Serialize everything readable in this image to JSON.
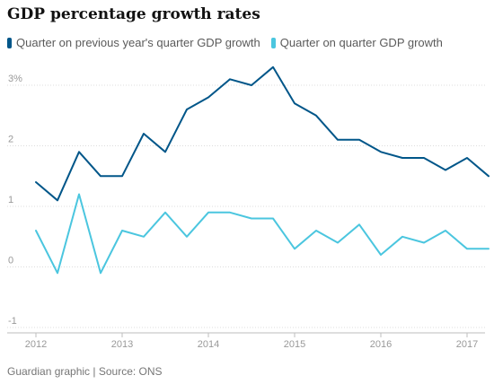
{
  "title": "GDP percentage growth rates",
  "footer": "Guardian graphic | Source: ONS",
  "colors": {
    "series1": "#005689",
    "series2": "#4bc6df",
    "grid": "#dcdcdc",
    "axis": "#bdbdbd",
    "tick": "#999999"
  },
  "chart_data": {
    "type": "line",
    "title": "GDP percentage growth rates",
    "xlabel": "",
    "ylabel": "",
    "ylim": [
      -1,
      3.5
    ],
    "xlim": [
      2012.0,
      2017.15
    ],
    "y_ticks": [
      {
        "value": 3,
        "label": "3%"
      },
      {
        "value": 2,
        "label": "2"
      },
      {
        "value": 1,
        "label": "1"
      },
      {
        "value": 0,
        "label": "0"
      },
      {
        "value": -1,
        "label": "-1"
      }
    ],
    "x_ticks": [
      {
        "value": 2012,
        "label": "2012"
      },
      {
        "value": 2013,
        "label": "2013"
      },
      {
        "value": 2014,
        "label": "2014"
      },
      {
        "value": 2015,
        "label": "2015"
      },
      {
        "value": 2016,
        "label": "2016"
      },
      {
        "value": 2017,
        "label": "2017"
      }
    ],
    "x": [
      "2012 Q1",
      "2012 Q2",
      "2012 Q3",
      "2012 Q4",
      "2013 Q1",
      "2013 Q2",
      "2013 Q3",
      "2013 Q4",
      "2014 Q1",
      "2014 Q2",
      "2014 Q3",
      "2014 Q4",
      "2015 Q1",
      "2015 Q2",
      "2015 Q3",
      "2015 Q4",
      "2016 Q1",
      "2016 Q2",
      "2016 Q3",
      "2016 Q4",
      "2017 Q1",
      "2017 Q2"
    ],
    "legend_position": "top-left",
    "grid": "horizontal-dotted",
    "series": [
      {
        "name": "Quarter on previous year's quarter GDP growth",
        "color": "#005689",
        "values": [
          1.4,
          1.1,
          1.9,
          1.5,
          1.5,
          2.2,
          1.9,
          2.6,
          2.8,
          3.1,
          3.0,
          3.3,
          2.7,
          2.5,
          2.1,
          2.1,
          1.9,
          1.8,
          1.8,
          1.6,
          1.8,
          1.5
        ]
      },
      {
        "name": "Quarter on quarter GDP growth",
        "color": "#4bc6df",
        "values": [
          0.6,
          -0.1,
          1.2,
          -0.1,
          0.6,
          0.5,
          0.9,
          0.5,
          0.9,
          0.9,
          0.8,
          0.8,
          0.3,
          0.6,
          0.4,
          0.7,
          0.2,
          0.5,
          0.4,
          0.6,
          0.3,
          0.3
        ]
      }
    ]
  }
}
